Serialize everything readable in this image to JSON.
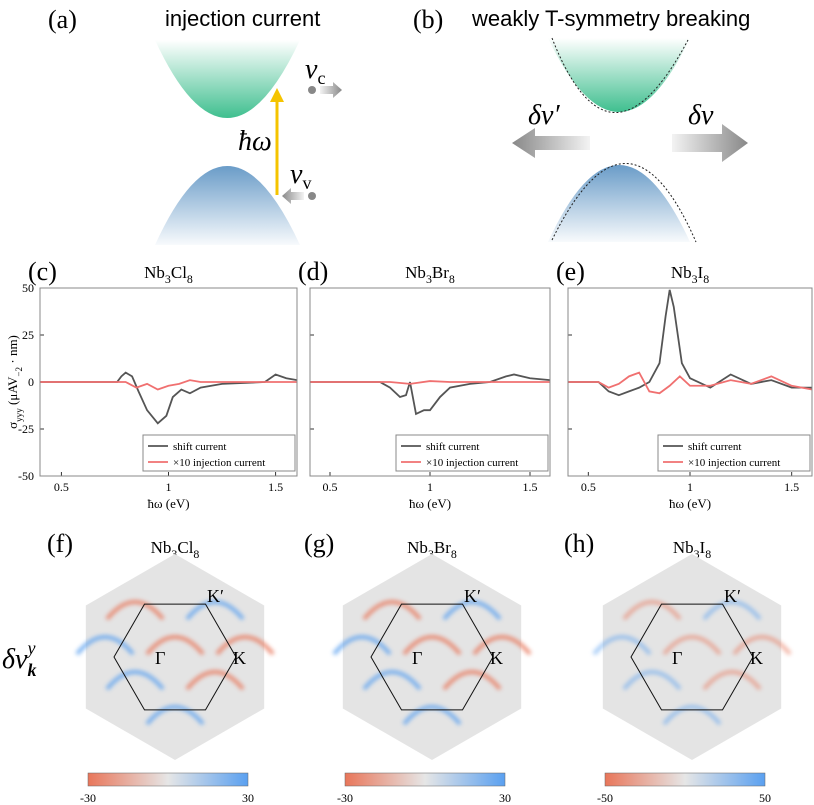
{
  "panel_a": {
    "label": "(a)",
    "title": "injection current",
    "vc": [
      "v",
      "c"
    ],
    "hw": "ħω",
    "vv": [
      "v",
      "v"
    ]
  },
  "panel_b": {
    "label": "(b)",
    "title": "weakly T-symmetry breaking",
    "left": "δv′",
    "right": "δv"
  },
  "chart_data": [
    {
      "type": "line",
      "label": "(c)",
      "title": [
        "Nb",
        "3",
        "Cl",
        "8"
      ],
      "xlabel": "ħω (eV)",
      "ylabel": [
        "σ",
        "yyy",
        " (μAV",
        "−2",
        " · nm)"
      ],
      "xlim": [
        0.4,
        1.6
      ],
      "ylim": [
        -50,
        50
      ],
      "xticks": [
        0.5,
        1,
        1.5
      ],
      "yticks": [
        -50,
        -25,
        0,
        25,
        50
      ],
      "series": [
        {
          "name": "shift current",
          "color": "#555555",
          "x": [
            0.4,
            0.76,
            0.78,
            0.8,
            0.83,
            0.86,
            0.9,
            0.95,
            0.99,
            1.02,
            1.06,
            1.1,
            1.15,
            1.25,
            1.45,
            1.5,
            1.55,
            1.6
          ],
          "values": [
            0,
            0,
            3,
            5,
            3,
            -5,
            -15,
            -22,
            -18,
            -8,
            -4,
            -6,
            -3,
            -1,
            0,
            4,
            2,
            1
          ]
        },
        {
          "name": "×10 injection current",
          "color": "#f07070",
          "x": [
            0.4,
            0.8,
            0.85,
            0.9,
            0.95,
            1.0,
            1.05,
            1.1,
            1.15,
            1.6
          ],
          "values": [
            0,
            0,
            -3,
            -1,
            -4,
            -2,
            -1,
            1,
            0,
            0
          ]
        }
      ]
    },
    {
      "type": "line",
      "label": "(d)",
      "title": [
        "Nb",
        "3",
        "Br",
        "8"
      ],
      "xlabel": "ħω (eV)",
      "xlim": [
        0.4,
        1.6
      ],
      "ylim": [
        -50,
        50
      ],
      "xticks": [
        0.5,
        1,
        1.5
      ],
      "yticks": [
        -50,
        -25,
        0,
        25,
        50
      ],
      "series": [
        {
          "name": "shift current",
          "color": "#555555",
          "x": [
            0.4,
            0.75,
            0.8,
            0.85,
            0.88,
            0.9,
            0.93,
            0.97,
            1.0,
            1.05,
            1.1,
            1.2,
            1.3,
            1.38,
            1.42,
            1.5,
            1.6
          ],
          "values": [
            0,
            0,
            -3,
            -8,
            -7,
            0,
            -17,
            -15,
            -15,
            -8,
            -3,
            -1,
            0,
            3,
            4,
            2,
            1
          ]
        },
        {
          "name": "×10 injection current",
          "color": "#f07070",
          "x": [
            0.4,
            0.8,
            0.9,
            1.0,
            1.1,
            1.6
          ],
          "values": [
            0,
            0,
            -1,
            0.5,
            0,
            0
          ]
        }
      ]
    },
    {
      "type": "line",
      "label": "(e)",
      "title": [
        "Nb",
        "3",
        "I",
        "8"
      ],
      "xlabel": "ħω (eV)",
      "xlim": [
        0.4,
        1.6
      ],
      "ylim": [
        -50,
        50
      ],
      "xticks": [
        0.5,
        1,
        1.5
      ],
      "yticks": [
        -50,
        -25,
        0,
        25,
        50
      ],
      "series": [
        {
          "name": "shift current",
          "color": "#555555",
          "x": [
            0.4,
            0.55,
            0.6,
            0.65,
            0.7,
            0.75,
            0.8,
            0.85,
            0.88,
            0.9,
            0.92,
            0.96,
            1.0,
            1.1,
            1.2,
            1.3,
            1.4,
            1.5,
            1.6
          ],
          "values": [
            0,
            0,
            -5,
            -7,
            -5,
            -3,
            0,
            10,
            35,
            49,
            40,
            10,
            2,
            -3,
            4,
            -1,
            1,
            -3,
            -3
          ]
        },
        {
          "name": "×10 injection current",
          "color": "#f07070",
          "x": [
            0.4,
            0.55,
            0.6,
            0.65,
            0.7,
            0.75,
            0.8,
            0.85,
            0.9,
            0.95,
            1.0,
            1.1,
            1.2,
            1.3,
            1.4,
            1.5,
            1.6
          ],
          "values": [
            0,
            0,
            -3,
            -1,
            3,
            5,
            -5,
            -6,
            -2,
            3,
            -2,
            -2,
            1,
            -1,
            3,
            -2,
            -4
          ]
        }
      ]
    }
  ],
  "maps": {
    "row_label": [
      "δv",
      "k",
      "y"
    ],
    "gamma": "Γ",
    "k": "K",
    "kp": "K′",
    "panels": [
      {
        "label": "(f)",
        "title": [
          "Nb",
          "3",
          "Cl",
          "8"
        ],
        "colorbar": [
          -30,
          30
        ]
      },
      {
        "label": "(g)",
        "title": [
          "Nb",
          "3",
          "Br",
          "8"
        ],
        "colorbar": [
          -30,
          30
        ]
      },
      {
        "label": "(h)",
        "title": [
          "Nb",
          "3",
          "I",
          "8"
        ],
        "colorbar": [
          -50,
          50
        ]
      }
    ]
  }
}
